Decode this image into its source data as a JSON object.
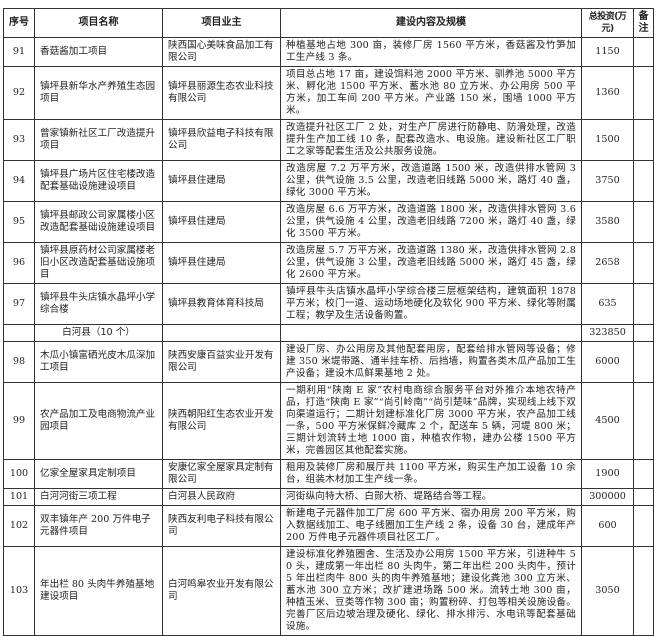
{
  "headers": {
    "no": "序号",
    "name": "项目名称",
    "owner": "项目业主",
    "content": "建设内容及规模",
    "investment": "总投资(万元)",
    "remark": "备注"
  },
  "rows": [
    {
      "no": "91",
      "name": "香菇酱加工项目",
      "owner": "陕西国心美味食品加工有限公司",
      "content": "种植基地占地 300 亩，装修厂房 1560 平方米，香菇酱及竹笋加工生产线 3 条。",
      "investment": "1150",
      "remark": ""
    },
    {
      "no": "92",
      "name": "镇坪县新华水产养殖生态园项目",
      "owner": "镇坪县丽源生态农业科技有限公司",
      "content": "项目总占地 17 亩，建设饵料池 2000 平方米、驯养池 5000 平方米、孵化池 1500 平方米、蓄水池 80 立方米、办公用房 500 平方米，加工车间 200 平方米。产业路 150 米，围墙 1000 平方米。",
      "investment": "1360",
      "remark": ""
    },
    {
      "no": "93",
      "name": "曾家镇新社区工厂改造提升项目",
      "owner": "镇坪县欣益电子科技有限公司",
      "content": "改造提升社区工厂 2 处，对生产厂房进行防静电、防滑处理，改造提升生产加工线 10 条，配套改造水、电设施。建设新社区工厂职工之家等配套生活及公共服务设施。",
      "investment": "1500",
      "remark": ""
    },
    {
      "no": "94",
      "name": "镇坪县广场片区住宅楼改造配套基础设施建设项目",
      "owner": "镇坪县住建局",
      "content": "改造房屋 7.2 万平方米，改造道路 1500 米，改造供排水管网 3 公里，供气设施 3.5 公里，改造老旧线路 5000 米，路灯 40 盏，绿化 3000 平方米。",
      "investment": "3750",
      "remark": ""
    },
    {
      "no": "95",
      "name": "镇坪县邮政公司家属楼小区改造配套基础设施建设项目",
      "owner": "镇坪县住建局",
      "content": "改造房屋 6.6 万平方米，改造道路 1800 米，改造供排水管网 3.6 公里，供气设施 4 公里，改造老旧线路 7200 米，路灯 40 盏，绿化 3500 平方米。",
      "investment": "3580",
      "remark": ""
    },
    {
      "no": "96",
      "name": "镇坪县原药材公司家属楼老旧小区改造配套基础设施项目",
      "owner": "镇坪县住建局",
      "content": "改造房屋 5.7 万平方米，改造道路 1380 米，改造供排水管网 2.8 公里，供气设施 3 公里，改造老旧线路 5000 米，路灯 45 盏，绿化 2600 平方米。",
      "investment": "2658",
      "remark": ""
    },
    {
      "no": "97",
      "name": "镇坪县牛头店镇水晶坪小学综合楼",
      "owner": "镇坪县教育体育科技局",
      "content": "镇坪县牛头店镇水晶坪小学综合楼三层框架结构，建筑面积 1878 平方米；校门一道、运动场地硬化及软化 900 平方米、绿化等附属工程；教学及生活设备购置。",
      "investment": "635",
      "remark": ""
    },
    {
      "subtotal": true,
      "name": "白河县（10 个）",
      "investment": "323850"
    },
    {
      "no": "98",
      "name": "木瓜小镇富硒光皮木瓜深加工项目",
      "owner": "陕西安康百益实业开发有限公司",
      "content": "建设厂房、办公用房及其他配套用房，配套给排水管网等设备；修建 350 米堤带路、通半挂车桥、后挡墙，购置各类木瓜产品加工生产设备；建设木瓜鲜果基地 2 处。",
      "investment": "6000",
      "remark": ""
    },
    {
      "no": "99",
      "name": "农产品加工及电商物流产业园项目",
      "owner": "陕西朝阳红生态农业开发有限公司",
      "content": "一期利用“陕南 E 家”农村电商综合服务平台对外推介本地农特产品，打造“陕南 E 家”“尚引岭南”“尚引楚味”品牌，实现线上线下双向渠道运行；二期计划建标准化厂房 3000 平方米，农产品加工线一条，500 平方米保鲜冷藏库 2 个，配送车 5 辆，河堤 800 米；三期计划流转土地 1000 亩，种植农作物，建办公楼 1500 平方米，完善园区其他配套实施。",
      "investment": "4500",
      "remark": ""
    },
    {
      "no": "100",
      "name": "亿家全屋家具定制项目",
      "owner": "安康亿家全屋家具定制有限公司",
      "content": "租用及装修厂房和展厅共 1100 平方米，购买生产加工设备 10 余台，组装木材加工生产线一条。",
      "investment": "1900",
      "remark": ""
    },
    {
      "no": "101",
      "name": "白河河街三项工程",
      "owner": "白河县人民政府",
      "content": "河街纵向特大桥、白郧大桥、堤路结合等工程。",
      "investment": "300000",
      "remark": ""
    },
    {
      "no": "102",
      "name": "双丰镇年产 200 万件电子元器件项目",
      "owner": "陕西友利电子科技有限公司",
      "content": "新建电子元器件加工厂房 600 平方米、宿办用房 200 平方米，购入数据线加工、电子线圈加工生产线 2 条，设备 30 台，建成年产 200 万件电子元器件项目社区工厂。",
      "investment": "600",
      "remark": ""
    },
    {
      "no": "103",
      "name": "年出栏 80 头肉牛养殖基地建设项目",
      "owner": "白河鸣皋农业开发有限公司",
      "content": "建设标准化养殖圈舍、生活及办公用房 1500 平方米，引进种牛 50 头，建成第一年出栏 80 头肉牛，第二年出栏 200 头肉牛，预计 5 年出栏肉牛 800 头的肉牛养殖基地；建设化粪池 300 立方米、蓄水池 300 立方米；改扩建进场路 500 米。流转土地 300 亩，种植玉米、豆类等作物 300 亩；购置粉碎、打包等相关设施设备。完善厂区后边坡治理及硬化、绿化、排水排污、水电讯等配套基础设施。",
      "investment": "3050",
      "remark": ""
    }
  ]
}
